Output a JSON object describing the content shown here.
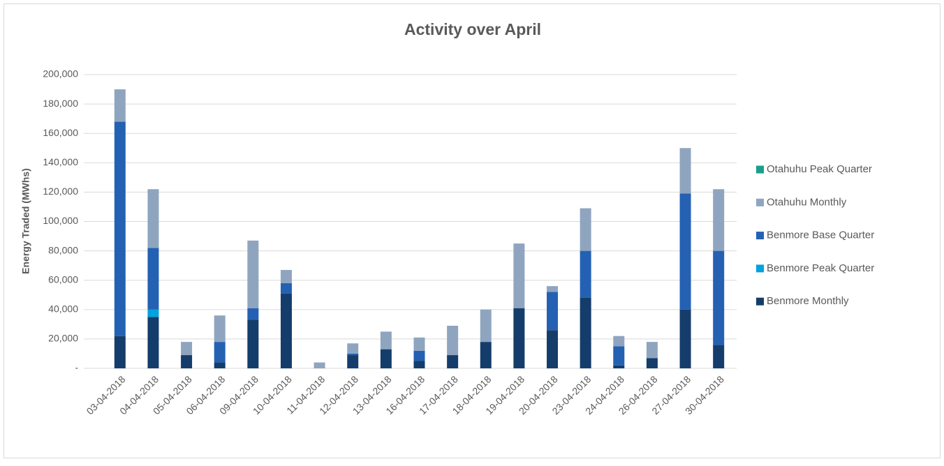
{
  "chart_data": {
    "type": "stacked_bar",
    "title": "Activity over April",
    "y_label": "Energy Traded (MWhs)",
    "categories": [
      "03-04-2018",
      "04-04-2018",
      "05-04-2018",
      "06-04-2018",
      "09-04-2018",
      "10-04-2018",
      "11-04-2018",
      "12-04-2018",
      "13-04-2018",
      "16-04-2018",
      "17-04-2018",
      "18-04-2018",
      "19-04-2018",
      "20-04-2018",
      "23-04-2018",
      "24-04-2018",
      "26-04-2018",
      "27-04-2018",
      "30-04-2018"
    ],
    "series": [
      {
        "name": "Benmore Monthly",
        "color": "#153d6b",
        "values": [
          22000,
          35000,
          9000,
          4000,
          33000,
          51000,
          0,
          9000,
          13000,
          5000,
          9000,
          18000,
          41000,
          26000,
          48000,
          2000,
          7000,
          40000,
          16000
        ]
      },
      {
        "name": "Benmore Peak Quarter",
        "color": "#00a3dd",
        "values": [
          0,
          5000,
          0,
          0,
          0,
          0,
          0,
          0,
          0,
          0,
          0,
          0,
          0,
          0,
          0,
          0,
          0,
          0,
          0
        ]
      },
      {
        "name": "Benmore Base Quarter",
        "color": "#2461b3",
        "values": [
          146000,
          42000,
          0,
          14000,
          8000,
          7000,
          0,
          1000,
          0,
          7000,
          0,
          0,
          0,
          26000,
          32000,
          13000,
          0,
          79000,
          64000
        ]
      },
      {
        "name": "Otahuhu Monthly",
        "color": "#8fa5bf",
        "values": [
          22000,
          40000,
          9000,
          18000,
          46000,
          9000,
          4000,
          7000,
          12000,
          9000,
          20000,
          22000,
          44000,
          4000,
          29000,
          7000,
          11000,
          31000,
          42000
        ]
      },
      {
        "name": "Otahuhu Peak Quarter",
        "color": "#1a9e8c",
        "values": [
          0,
          0,
          0,
          0,
          0,
          0,
          0,
          0,
          0,
          0,
          0,
          0,
          0,
          0,
          0,
          0,
          0,
          0,
          0
        ]
      }
    ],
    "ylim": [
      0,
      200000
    ],
    "yticks": [
      {
        "value": 0,
        "label": "-"
      },
      {
        "value": 20000,
        "label": "20,000"
      },
      {
        "value": 40000,
        "label": "40,000"
      },
      {
        "value": 60000,
        "label": "60,000"
      },
      {
        "value": 80000,
        "label": "80,000"
      },
      {
        "value": 100000,
        "label": "100,000"
      },
      {
        "value": 120000,
        "label": "120,000"
      },
      {
        "value": 140000,
        "label": "140,000"
      },
      {
        "value": 160000,
        "label": "160,000"
      },
      {
        "value": 180000,
        "label": "180,000"
      },
      {
        "value": 200000,
        "label": "200,000"
      }
    ],
    "grid": true,
    "legend": "right"
  }
}
